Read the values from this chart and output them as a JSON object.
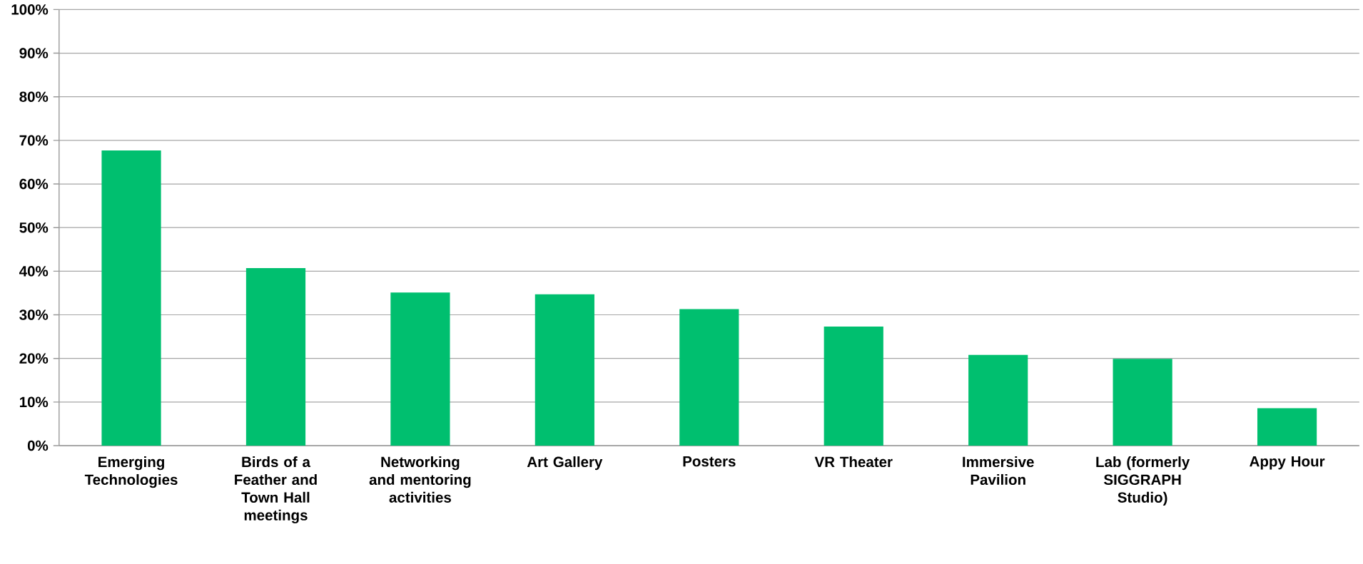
{
  "chart_data": {
    "type": "bar",
    "categories": [
      "Emerging Technologies",
      "Birds of a Feather and Town Hall meetings",
      "Networking and mentoring activities",
      "Art Gallery",
      "Posters",
      "VR Theater",
      "Immersive Pavilion",
      "Lab (formerly SIGGRAPH Studio)",
      "Appy Hour"
    ],
    "values": [
      67.7,
      40.7,
      35.1,
      34.7,
      31.3,
      27.3,
      20.8,
      19.9,
      8.6
    ],
    "color": "#00bf6f",
    "ylim": [
      0,
      100
    ],
    "yticks": [
      {
        "value": 0,
        "label": "0%"
      },
      {
        "value": 10,
        "label": "10%"
      },
      {
        "value": 20,
        "label": "20%"
      },
      {
        "value": 30,
        "label": "30%"
      },
      {
        "value": 40,
        "label": "40%"
      },
      {
        "value": 50,
        "label": "50%"
      },
      {
        "value": 60,
        "label": "60%"
      },
      {
        "value": 70,
        "label": "70%"
      },
      {
        "value": 80,
        "label": "80%"
      },
      {
        "value": 90,
        "label": "90%"
      },
      {
        "value": 100,
        "label": "100%"
      }
    ],
    "grid": "y"
  }
}
